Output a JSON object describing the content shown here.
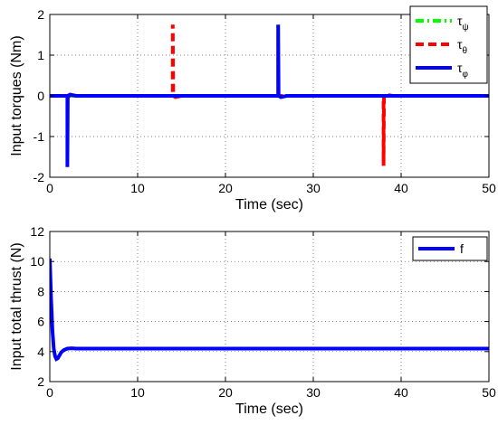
{
  "chart_data": [
    {
      "type": "line",
      "xlabel": "Time (sec)",
      "ylabel": "Input torques (Nm)",
      "xlim": [
        0,
        50
      ],
      "ylim": [
        -2,
        2
      ],
      "xticks": [
        0,
        10,
        20,
        30,
        40,
        50
      ],
      "yticks": [
        -2,
        -1,
        0,
        1,
        2
      ],
      "grid": true,
      "legend_position": "top-right",
      "series": [
        {
          "name": "τ",
          "subscript": "ψ",
          "color": "#00ff00",
          "style": "dash-dot",
          "x": [
            0,
            50
          ],
          "y": [
            0,
            0
          ]
        },
        {
          "name": "τ",
          "subscript": "θ",
          "color": "#ff0000",
          "style": "dashed",
          "x": [
            0,
            14,
            14,
            14.05,
            14.3,
            15,
            37.9,
            38,
            38,
            38.05,
            38.3,
            39,
            50
          ],
          "y": [
            0,
            0,
            1.75,
            0,
            -0.03,
            0,
            0,
            0,
            -1.72,
            0,
            0.03,
            0,
            0
          ]
        },
        {
          "name": "τ",
          "subscript": "φ",
          "color": "#0000ff",
          "style": "solid",
          "x": [
            0,
            2,
            2,
            2.05,
            2.3,
            3,
            25.9,
            26,
            26,
            26.05,
            26.3,
            27,
            50
          ],
          "y": [
            0,
            0,
            -1.75,
            0,
            0.03,
            0,
            0,
            0,
            1.75,
            0,
            -0.03,
            0,
            0
          ]
        }
      ]
    },
    {
      "type": "line",
      "xlabel": "Time (sec)",
      "ylabel": "Input total thrust (N)",
      "xlim": [
        0,
        50
      ],
      "ylim": [
        2,
        12
      ],
      "xticks": [
        0,
        10,
        20,
        30,
        40,
        50
      ],
      "yticks": [
        2,
        4,
        6,
        8,
        10,
        12
      ],
      "grid": true,
      "legend_position": "top-right",
      "series": [
        {
          "name": "f",
          "color": "#0000ff",
          "style": "solid",
          "x": [
            0,
            0.15,
            0.3,
            0.45,
            0.6,
            0.75,
            0.9,
            1.1,
            1.3,
            1.6,
            2.0,
            2.5,
            3.0,
            50
          ],
          "y": [
            10.2,
            7.5,
            5.4,
            4.2,
            3.7,
            3.5,
            3.55,
            3.75,
            3.95,
            4.1,
            4.2,
            4.22,
            4.2,
            4.2
          ]
        }
      ]
    }
  ]
}
